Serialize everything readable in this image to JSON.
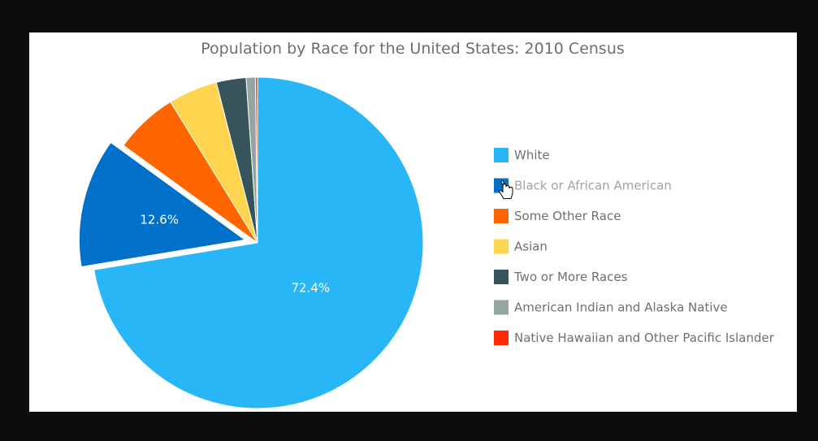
{
  "chart_data": {
    "type": "pie",
    "title": "Population by Race for the United States: 2010 Census",
    "categories": [
      "White",
      "Black or African American",
      "Some Other Race",
      "Asian",
      "Two or More Races",
      "American Indian and Alaska Native",
      "Native Hawaiian and Other Pacific Islander"
    ],
    "values": [
      72.4,
      12.6,
      6.2,
      4.8,
      2.9,
      0.9,
      0.2
    ],
    "colors": [
      "#29b6f6",
      "#0070c9",
      "#ff6600",
      "#ffd54f",
      "#37545b",
      "#95a5a1",
      "#ff2a00"
    ],
    "exploded_index": 1,
    "hovered_legend_index": 1,
    "data_labels": [
      {
        "index": 0,
        "text": "72.4%"
      },
      {
        "index": 1,
        "text": "12.6%"
      }
    ],
    "legend_placement": "right"
  },
  "cursor": {
    "icon": "hand-pointer-icon"
  }
}
